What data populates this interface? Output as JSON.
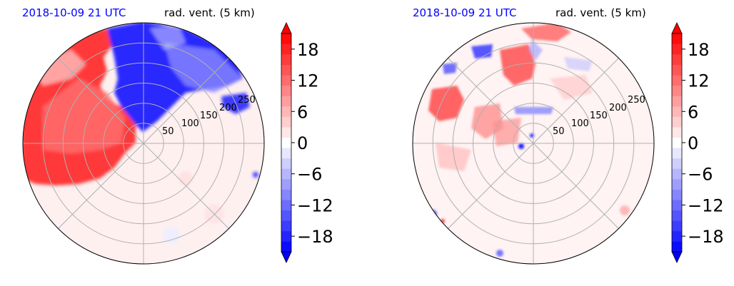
{
  "chart_data": [
    {
      "type": "heatmap",
      "projection": "polar",
      "title_left": "2018-10-09 21 UTC",
      "title_right": "rad. vent. (5 km)",
      "title_left_color": "#0000ff",
      "radial_ticks": [
        50,
        100,
        150,
        200,
        250
      ],
      "angular_gridlines": 8,
      "colormap": "bwr",
      "colorbar": {
        "ticks": [
          "18",
          "12",
          "6",
          "0",
          "−6",
          "−12",
          "−18"
        ],
        "tick_values": [
          18,
          12,
          6,
          0,
          -6,
          -12,
          -18
        ],
        "range": [
          -21,
          21
        ],
        "extend": "both",
        "levels": 21
      }
    },
    {
      "type": "heatmap",
      "projection": "polar",
      "title_left": "2018-10-09 21 UTC",
      "title_right": "rad. vent. (5 km)",
      "title_left_color": "#0000ff",
      "radial_ticks": [
        50,
        100,
        150,
        200,
        250
      ],
      "angular_gridlines": 8,
      "colormap": "bwr",
      "colorbar": {
        "ticks": [
          "18",
          "12",
          "6",
          "0",
          "−6",
          "−12",
          "−18"
        ],
        "tick_values": [
          18,
          12,
          6,
          0,
          -6,
          -12,
          -18
        ],
        "range": [
          -21,
          21
        ],
        "extend": "both",
        "levels": 21
      }
    }
  ],
  "colors": {
    "positive": "#ff0000",
    "negative": "#0000ff",
    "neutral": "#ffffff",
    "date_title": "#0000ff"
  }
}
